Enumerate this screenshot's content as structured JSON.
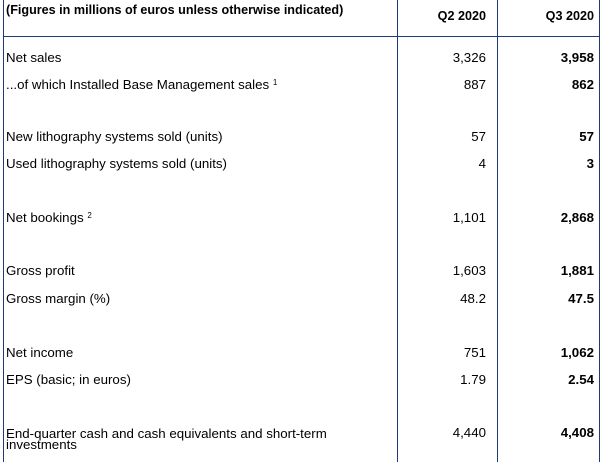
{
  "header": {
    "label": "(Figures in millions of euros unless otherwise indicated)",
    "col_q2": "Q2 2020",
    "col_q3": "Q3 2020"
  },
  "rows": [
    {
      "label": "Net sales",
      "sup": "",
      "q2": "3,326",
      "q3": "3,958"
    },
    {
      "label": "...of which Installed Base Management sales",
      "sup": "1",
      "q2": "887",
      "q3": "862"
    },
    {
      "label": "New lithography systems sold (units)",
      "sup": "",
      "q2": "57",
      "q3": "57"
    },
    {
      "label": "Used lithography systems sold (units)",
      "sup": "",
      "q2": "4",
      "q3": "3"
    },
    {
      "label": "Net bookings",
      "sup": "2",
      "q2": "1,101",
      "q3": "2,868"
    },
    {
      "label": "Gross profit",
      "sup": "",
      "q2": "1,603",
      "q3": "1,881"
    },
    {
      "label": "Gross margin (%)",
      "sup": "",
      "q2": "48.2",
      "q3": "47.5"
    },
    {
      "label": "Net income",
      "sup": "",
      "q2": "751",
      "q3": "1,062"
    },
    {
      "label": "EPS (basic; in euros)",
      "sup": "",
      "q2": "1.79",
      "q3": "2.54"
    },
    {
      "label": "End-quarter cash and cash equivalents and short-term investments",
      "sup": "",
      "q2": "4,440",
      "q3": "4,408"
    }
  ]
}
